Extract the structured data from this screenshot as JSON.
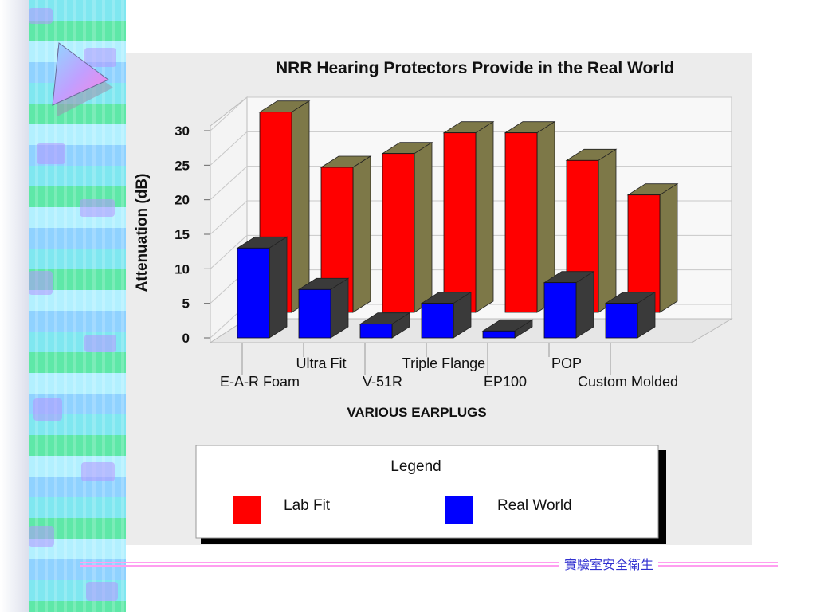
{
  "chart_data": {
    "type": "bar",
    "title": "NRR Hearing Protectors Provide in the Real World",
    "xlabel": "VARIOUS EARPLUGS",
    "ylabel": "Attenuation (dB)",
    "ylim": [
      0,
      30
    ],
    "yticks": [
      "0",
      "5",
      "10",
      "15",
      "20",
      "25",
      "30"
    ],
    "categories": [
      "E-A-R Foam",
      "Ultra Fit",
      "V-51R",
      "Triple Flange",
      "EP100",
      "POP",
      "Custom Molded"
    ],
    "series": [
      {
        "name": "Lab Fit",
        "color": "#ff0000",
        "values": [
          29,
          21,
          23,
          26,
          26,
          22,
          17
        ]
      },
      {
        "name": "Real World",
        "color": "#0000ff",
        "values": [
          13,
          7,
          2,
          5,
          1,
          8,
          5
        ]
      }
    ],
    "grid": true,
    "legend_position": "bottom",
    "legend_title": "Legend",
    "three_d": true
  },
  "footer": {
    "label": "實驗室安全衛生"
  },
  "colors": {
    "lab_fit_side": "#7d7848",
    "real_world_side": "#3a3a3a",
    "footer_line": "#ff9ef0",
    "footer_text": "#3030d0"
  },
  "decor": {
    "icon": "triangle-arrow-icon"
  }
}
